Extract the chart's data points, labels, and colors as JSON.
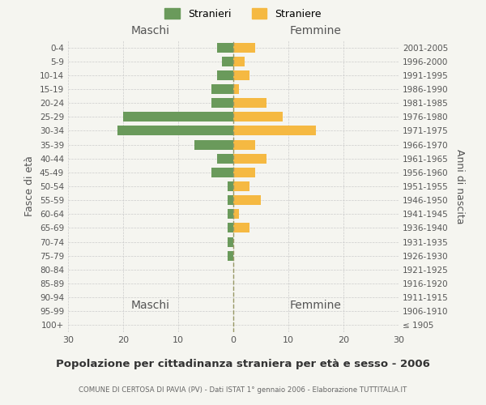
{
  "age_groups": [
    "100+",
    "95-99",
    "90-94",
    "85-89",
    "80-84",
    "75-79",
    "70-74",
    "65-69",
    "60-64",
    "55-59",
    "50-54",
    "45-49",
    "40-44",
    "35-39",
    "30-34",
    "25-29",
    "20-24",
    "15-19",
    "10-14",
    "5-9",
    "0-4"
  ],
  "birth_years": [
    "≤ 1905",
    "1906-1910",
    "1911-1915",
    "1916-1920",
    "1921-1925",
    "1926-1930",
    "1931-1935",
    "1936-1940",
    "1941-1945",
    "1946-1950",
    "1951-1955",
    "1956-1960",
    "1961-1965",
    "1966-1970",
    "1971-1975",
    "1976-1980",
    "1981-1985",
    "1986-1990",
    "1991-1995",
    "1996-2000",
    "2001-2005"
  ],
  "maschi": [
    0,
    0,
    0,
    0,
    0,
    1,
    1,
    1,
    1,
    1,
    1,
    4,
    3,
    7,
    21,
    20,
    4,
    4,
    3,
    2,
    3
  ],
  "femmine": [
    0,
    0,
    0,
    0,
    0,
    0,
    0,
    3,
    1,
    5,
    3,
    4,
    6,
    4,
    15,
    9,
    6,
    1,
    3,
    2,
    4
  ],
  "color_maschi": "#6a9a5b",
  "color_femmine": "#f5b942",
  "title": "Popolazione per cittadinanza straniera per età e sesso - 2006",
  "subtitle": "COMUNE DI CERTOSA DI PAVIA (PV) - Dati ISTAT 1° gennaio 2006 - Elaborazione TUTTITALIA.IT",
  "ylabel_left": "Fasce di età",
  "ylabel_right": "Anni di nascita",
  "xlabel_left": "Maschi",
  "xlabel_right": "Femmine",
  "legend_maschi": "Stranieri",
  "legend_femmine": "Straniere",
  "xlim": 30,
  "background_color": "#f5f5f0"
}
